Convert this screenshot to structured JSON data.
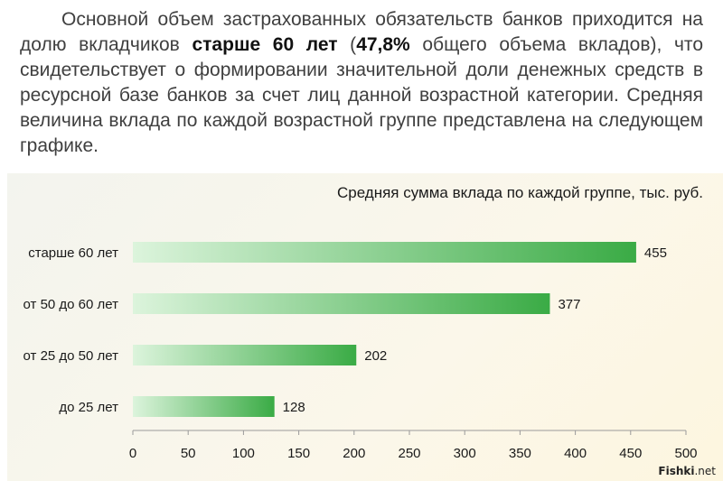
{
  "intro": {
    "part1": "Основной объем застрахованных обязательств банков приходится на долю вкладчиков ",
    "em1": "старше 60 лет",
    "part2": " (",
    "em2": "47,8%",
    "part3": " общего объема вкладов), что свидетельствует о формировании значительной доли денежных средств в ресурсной базе банков за счет лиц данной возрастной категории. Средняя величина вклада по каждой возрастной группе представлена на следующем графике."
  },
  "chart_data": {
    "type": "bar",
    "orientation": "horizontal",
    "title": "Средняя сумма вклада по каждой группе, тыс. руб.",
    "categories": [
      "старше 60 лет",
      "от 50 до 60 лет",
      "от 25 до 50 лет",
      "до 25 лет"
    ],
    "values": [
      455,
      377,
      202,
      128
    ],
    "xticks": [
      0,
      50,
      100,
      150,
      200,
      250,
      300,
      350,
      400,
      450,
      500
    ],
    "xlim": [
      0,
      500
    ],
    "xlabel": "",
    "ylabel": "",
    "grid": false,
    "bar_gradient": [
      "#dcf4dc",
      "#3aab45"
    ]
  },
  "watermark": {
    "brand": "Fishki",
    "suffix": ".net"
  }
}
